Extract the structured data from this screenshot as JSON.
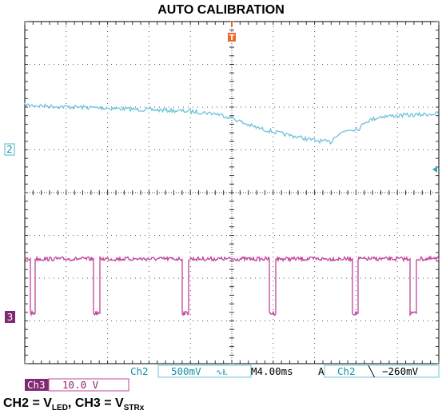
{
  "title": "AUTO CALIBRATION",
  "colors": {
    "ch2": "#6cc4d8",
    "ch3": "#c0449a",
    "trigger": "#f26522",
    "ch2_text": "#1a8fa6",
    "ch3_text": "#8b1f72"
  },
  "markers": {
    "trigger": "T",
    "ch2": "2",
    "ch3": "3"
  },
  "status": {
    "ch2_label": "Ch2",
    "ch2_scale": "500mV",
    "ch2_coupling": "∿Ⱡ",
    "timebase": "M4.00ms",
    "acq_mode": "A",
    "trig_source": "Ch2",
    "trig_slope": "╲",
    "trig_level": "−260mV",
    "ch3_label": "Ch3",
    "ch3_scale": "10.0 V"
  },
  "caption": {
    "p1": "CH2 = V",
    "s1": "LED",
    "p2": ", CH3 = V",
    "s2": "STRx"
  },
  "chart_data": {
    "type": "line",
    "xlabel": "",
    "ylabel": "",
    "x_divisions": 10,
    "y_divisions": 8,
    "time_per_div": "4.00ms",
    "series": [
      {
        "name": "CH2",
        "units": "divisions",
        "points": [
          [
            0,
            2.05
          ],
          [
            0.6,
            2.02
          ],
          [
            1.2,
            2.0
          ],
          [
            1.9,
            1.98
          ],
          [
            2.6,
            1.95
          ],
          [
            3.3,
            1.93
          ],
          [
            4.0,
            1.9
          ],
          [
            4.6,
            1.85
          ],
          [
            5.0,
            1.75
          ],
          [
            5.3,
            1.62
          ],
          [
            5.6,
            1.52
          ],
          [
            6.1,
            1.4
          ],
          [
            6.6,
            1.3
          ],
          [
            7.0,
            1.22
          ],
          [
            7.4,
            1.18
          ],
          [
            7.5,
            1.33
          ],
          [
            7.8,
            1.47
          ],
          [
            8.1,
            1.5
          ],
          [
            8.2,
            1.65
          ],
          [
            8.6,
            1.78
          ],
          [
            9.0,
            1.8
          ],
          [
            9.5,
            1.82
          ],
          [
            10.0,
            1.85
          ]
        ]
      },
      {
        "name": "CH3",
        "units": "divisions",
        "high": -1.55,
        "low": -2.82,
        "pulses": [
          [
            0.13,
            0.25
          ],
          [
            1.65,
            1.8
          ],
          [
            3.8,
            3.95
          ],
          [
            5.9,
            6.05
          ],
          [
            7.9,
            8.05
          ],
          [
            9.3,
            9.45
          ]
        ]
      }
    ]
  }
}
